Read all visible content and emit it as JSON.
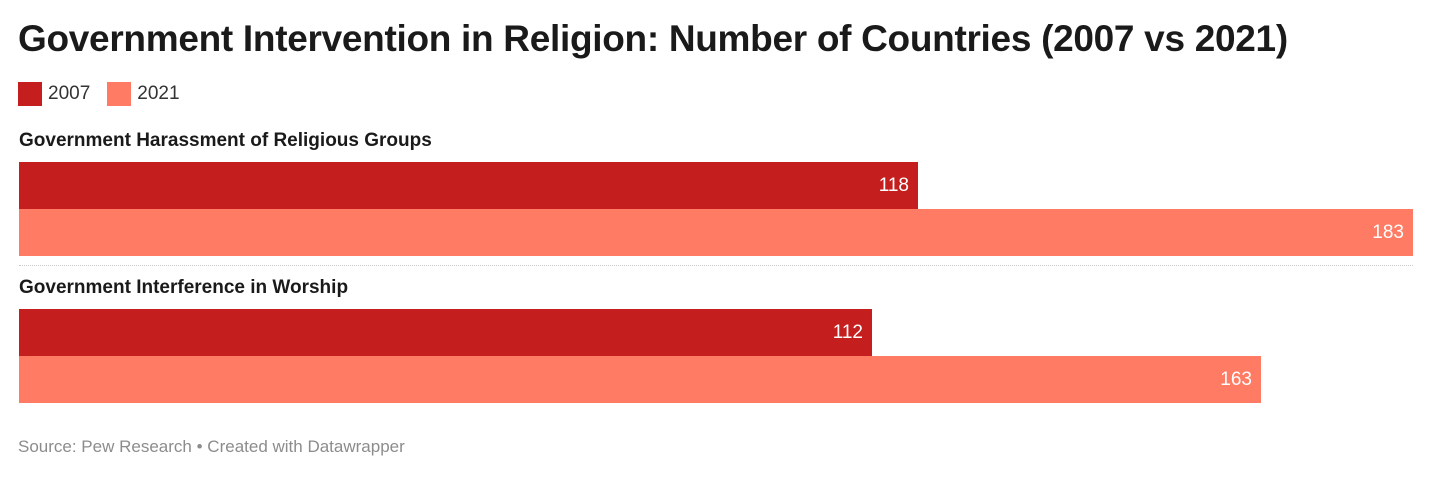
{
  "title": "Government Intervention in Religion: Number of Countries (2007 vs 2021)",
  "legend": [
    {
      "label": "2007",
      "color": "#c41e1e"
    },
    {
      "label": "2021",
      "color": "#ff7b63"
    }
  ],
  "footer": {
    "source_text": "Source: Pew Research",
    "separator": "•",
    "credit_text": "Created with Datawrapper"
  },
  "chart_data": {
    "type": "bar",
    "orientation": "horizontal",
    "categories": [
      "Government Harassment of Religious Groups",
      "Government Interference in Worship"
    ],
    "series": [
      {
        "name": "2007",
        "color": "#c41e1e",
        "values": [
          118,
          112
        ]
      },
      {
        "name": "2021",
        "color": "#ff7b63",
        "values": [
          183,
          163
        ]
      }
    ],
    "xlim": [
      0,
      183
    ],
    "grid": false,
    "legend_position": "top-left",
    "data_labels": true
  }
}
